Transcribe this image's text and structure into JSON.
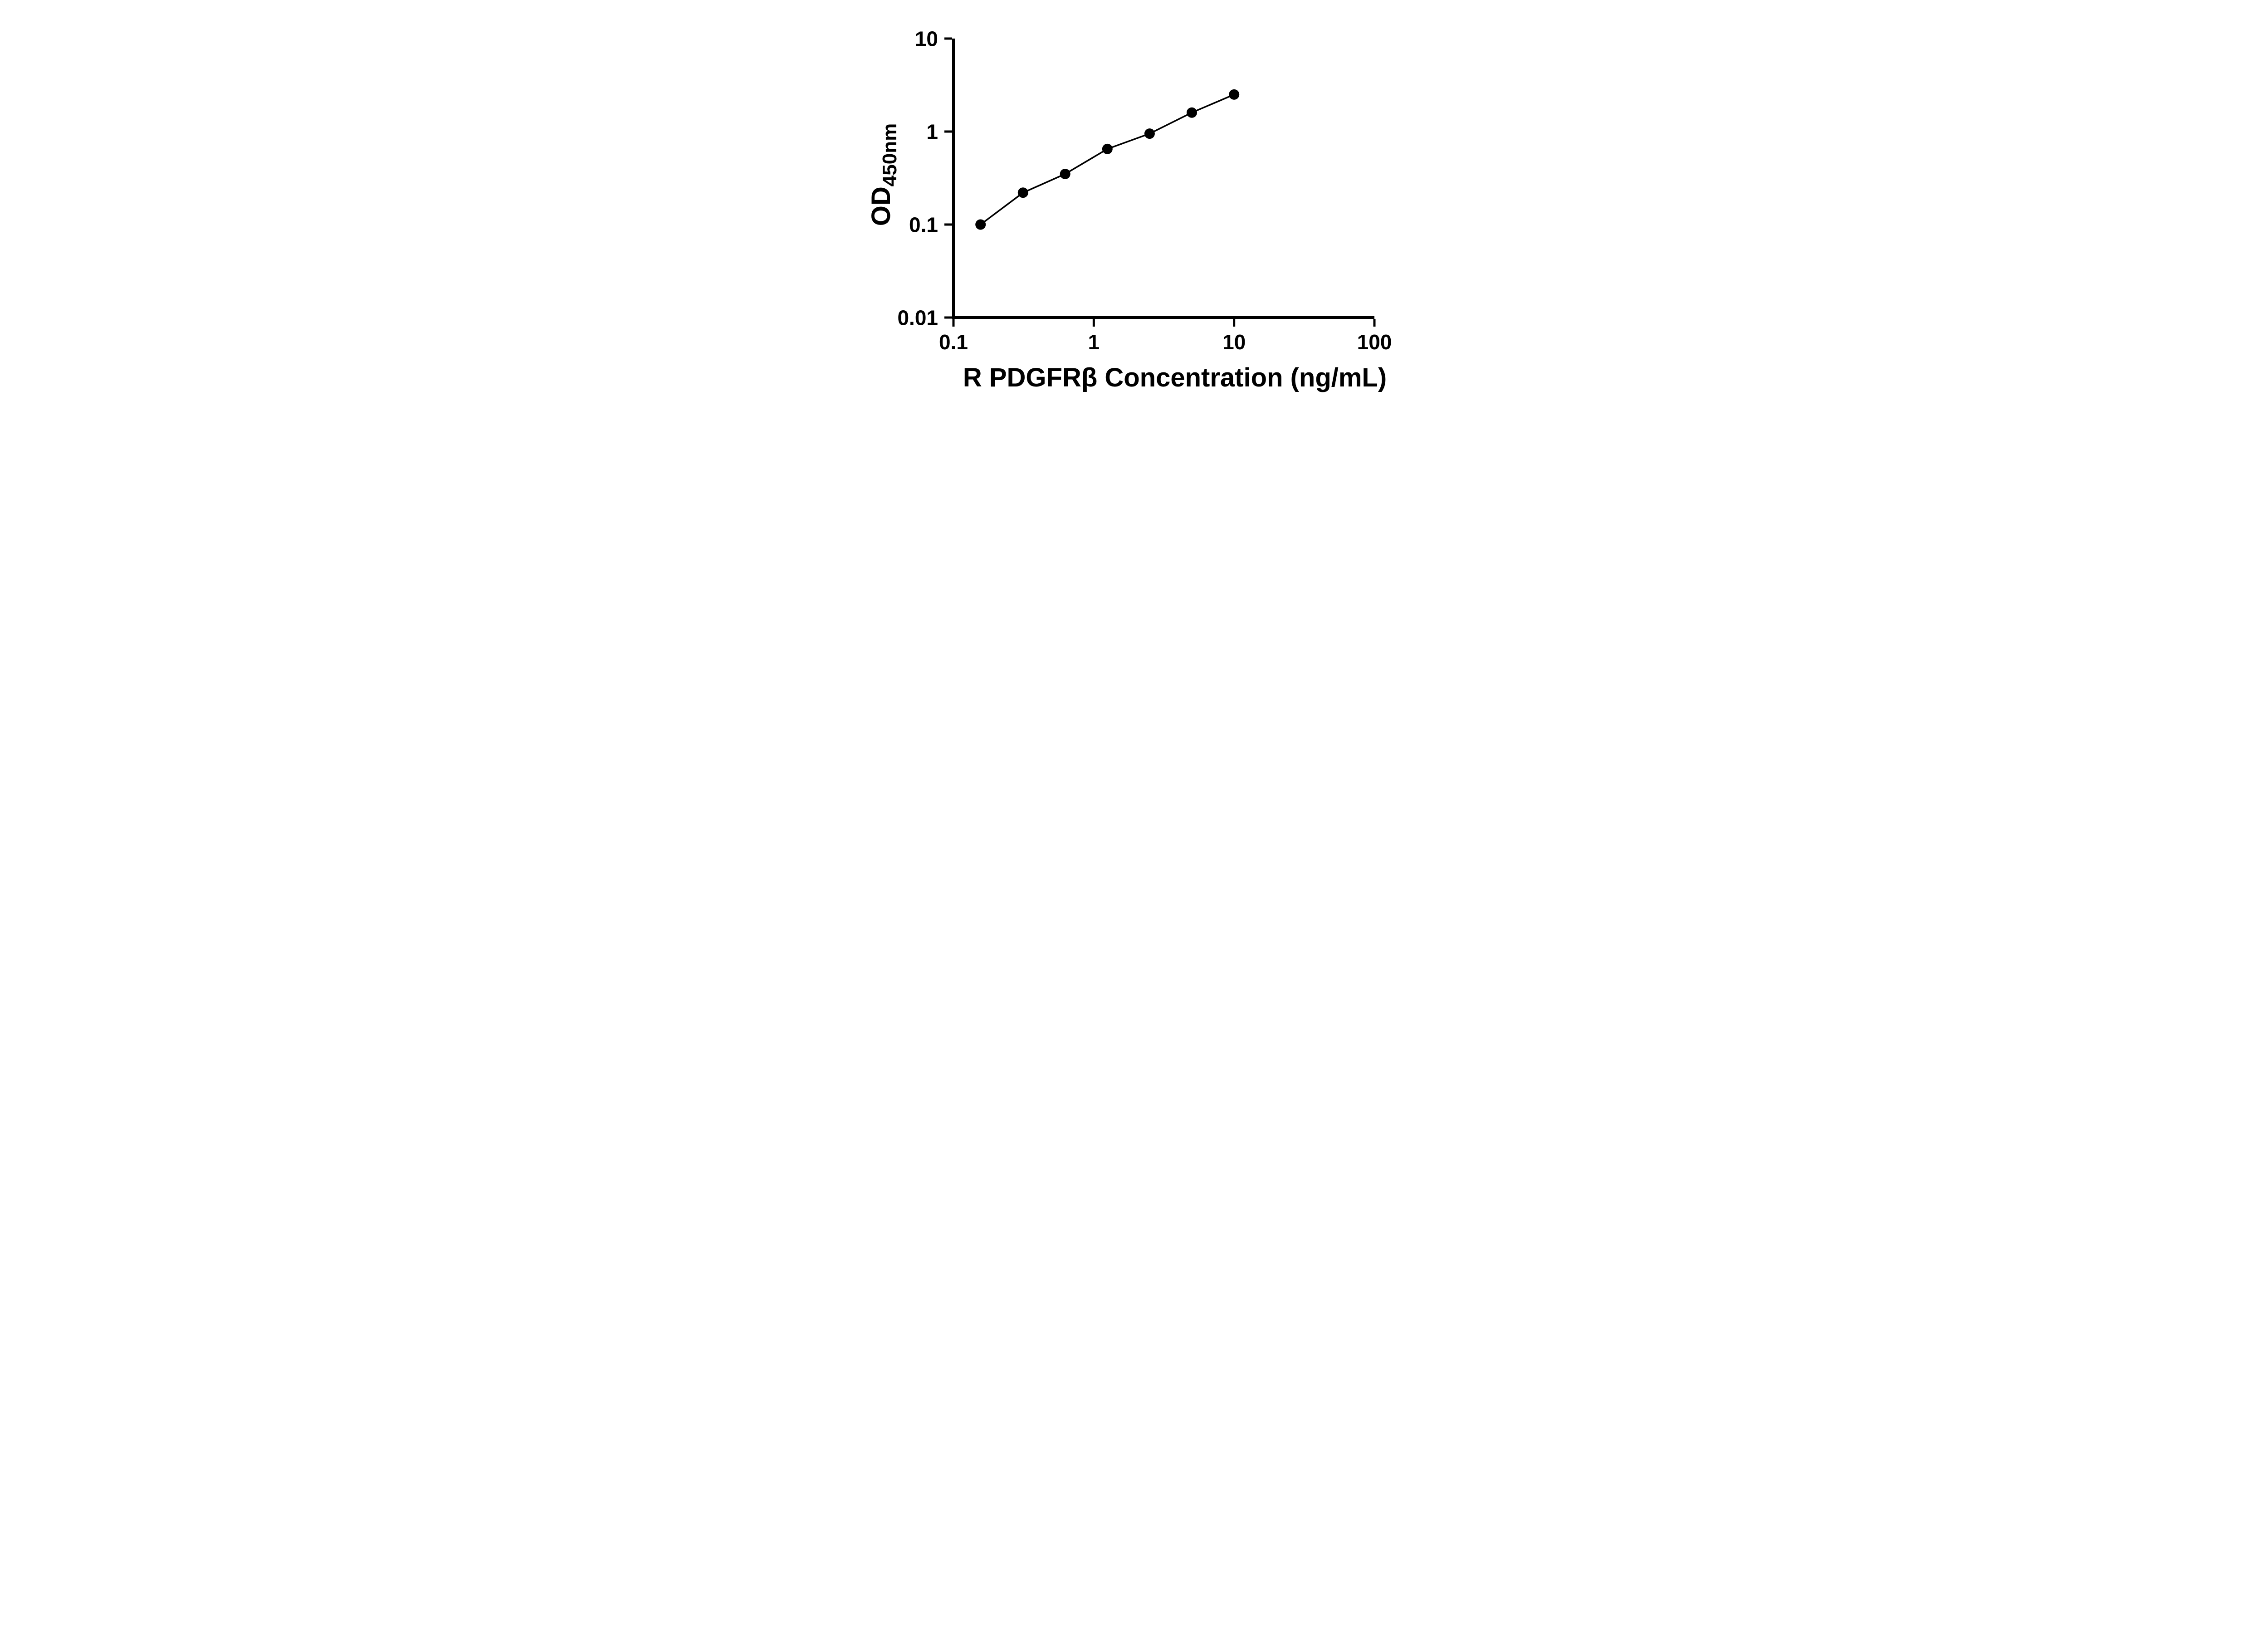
{
  "chart_data": {
    "type": "scatter",
    "title": "",
    "xlabel": "R PDGFRβ Concentration (ng/mL)",
    "ylabel_main": "OD",
    "ylabel_sub": "450nm",
    "x_scale": "log",
    "y_scale": "log",
    "xlim": [
      0.1,
      100
    ],
    "ylim": [
      0.01,
      10
    ],
    "grid": false,
    "legend_position": "none",
    "x": [
      0.156,
      0.313,
      0.625,
      1.25,
      2.5,
      5,
      10
    ],
    "y": [
      0.1,
      0.22,
      0.35,
      0.65,
      0.95,
      1.6,
      2.5
    ],
    "x_ticks": [
      {
        "value": 0.1,
        "label": "0.1"
      },
      {
        "value": 1,
        "label": "1"
      },
      {
        "value": 10,
        "label": "10"
      },
      {
        "value": 100,
        "label": "100"
      }
    ],
    "y_ticks": [
      {
        "value": 0.01,
        "label": "0.01"
      },
      {
        "value": 0.1,
        "label": "0.1"
      },
      {
        "value": 1,
        "label": "1"
      },
      {
        "value": 10,
        "label": "10"
      }
    ],
    "marker_color": "#000000",
    "line_color": "#000000",
    "axis_color": "#000000"
  }
}
